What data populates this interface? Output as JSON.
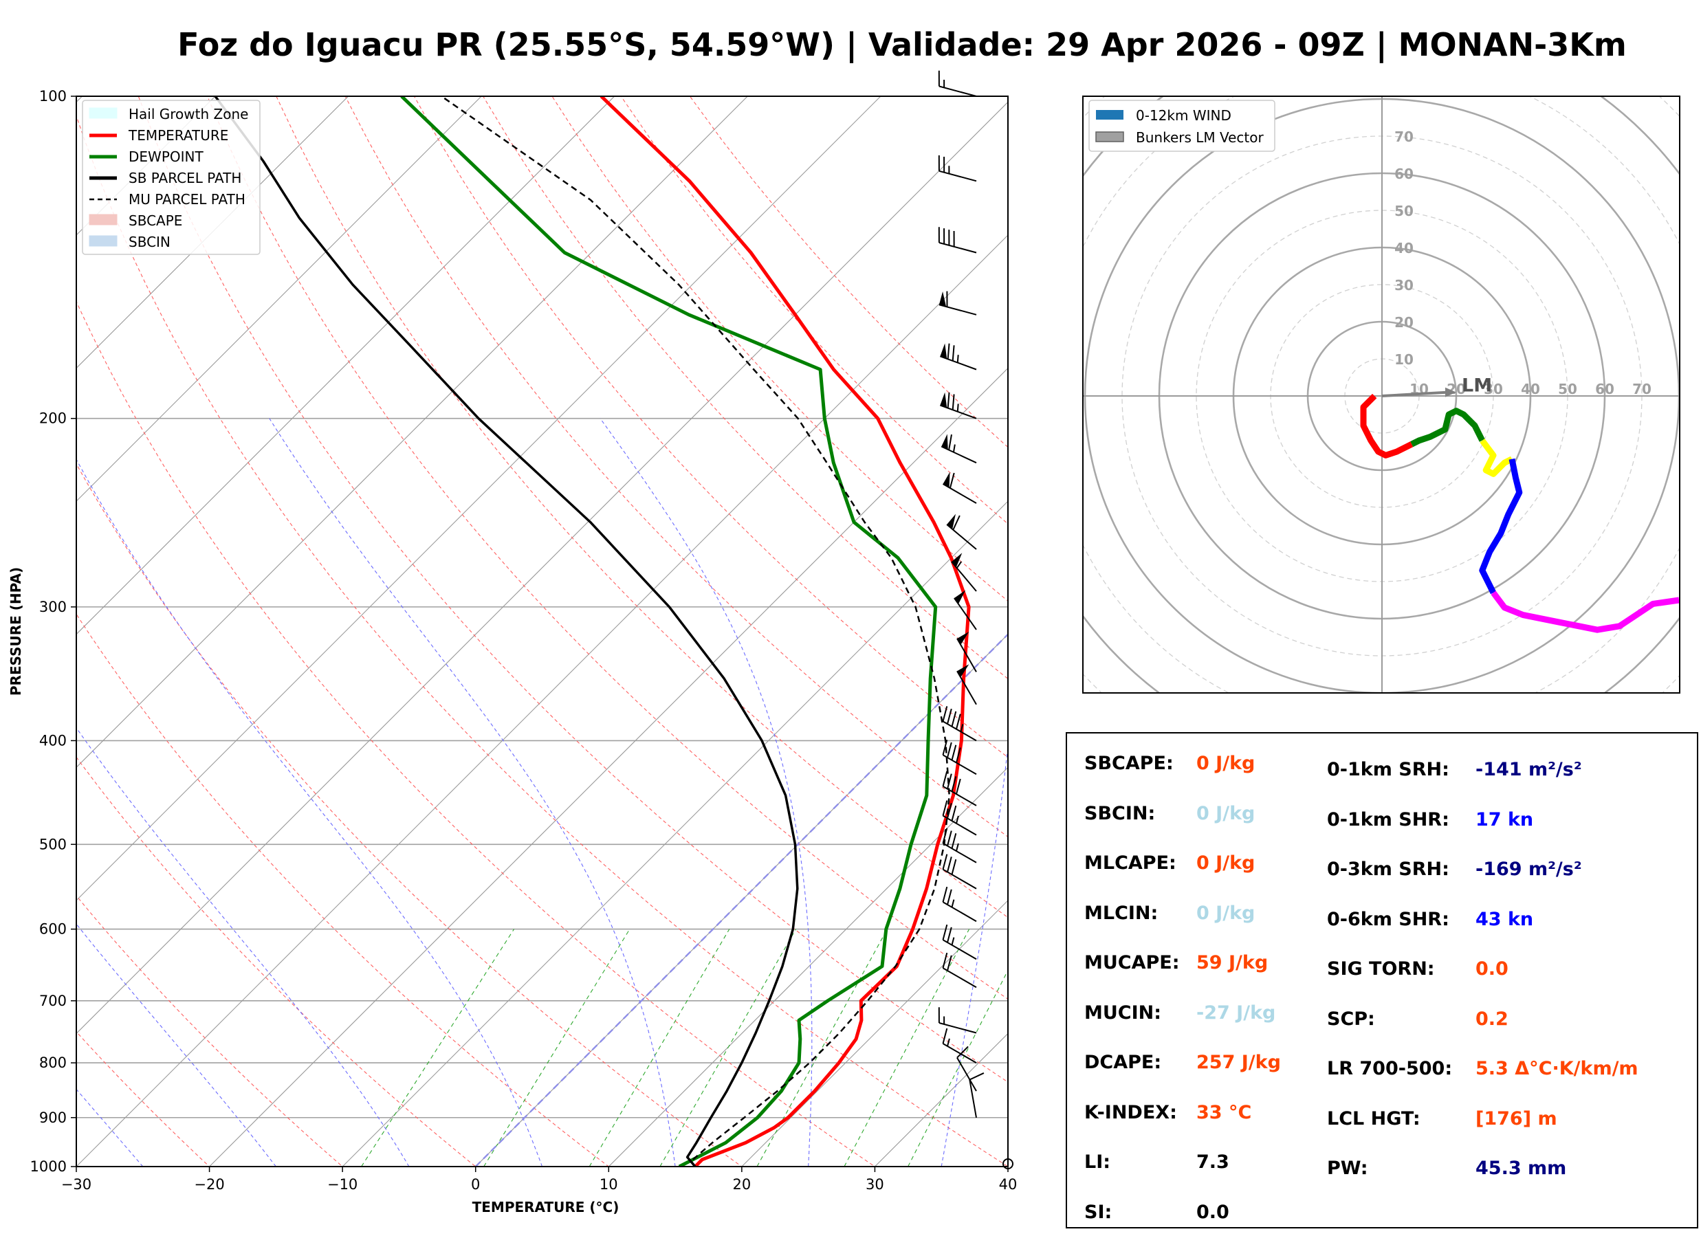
{
  "title": "Foz do Iguacu PR (25.55°S, 54.59°W) | Validade: 29 Apr 2026 - 09Z | MONAN-3Km",
  "colors": {
    "temperature": "#ff0000",
    "dewpoint": "#008000",
    "sb_parcel": "#000000",
    "mu_parcel": "#000000",
    "hodo_segments": [
      "#ff0000",
      "#008000",
      "#ffff00",
      "#0000ff",
      "#ff00ff"
    ],
    "param_orange": "#ff4500",
    "param_lightblue": "#add8e6",
    "param_navy": "#000080",
    "param_blue": "#0000ff",
    "param_black": "#000000"
  },
  "chart_data": [
    {
      "type": "line",
      "subtype": "skew-T log-p",
      "xlabel": "TEMPERATURE (°C)",
      "ylabel": "PRESSURE (HPA)",
      "xlim": [
        -30,
        40
      ],
      "ylim": [
        1000,
        100
      ],
      "x_ticks": [
        "−30",
        "−20",
        "−10",
        "0",
        "10",
        "20",
        "30",
        "40"
      ],
      "y_ticks": [
        "100",
        "200",
        "300",
        "400",
        "500",
        "600",
        "700",
        "800",
        "900",
        "1000"
      ],
      "legend": [
        {
          "label": "Hail Growth Zone",
          "style": "fill",
          "color": "#e0ffff"
        },
        {
          "label": "TEMPERATURE",
          "style": "line",
          "color": "#ff0000"
        },
        {
          "label": "DEWPOINT",
          "style": "line",
          "color": "#008000"
        },
        {
          "label": "SB PARCEL PATH",
          "style": "line",
          "color": "#000000"
        },
        {
          "label": "MU PARCEL PATH",
          "style": "dash",
          "color": "#000000"
        },
        {
          "label": "SBCAPE",
          "style": "fill",
          "color": "#f4c7c3"
        },
        {
          "label": "SBCIN",
          "style": "fill",
          "color": "#c6dbef"
        }
      ],
      "series": [
        {
          "name": "TEMPERATURE",
          "p": [
            1000,
            985,
            950,
            920,
            900,
            850,
            800,
            760,
            730,
            700,
            650,
            600,
            550,
            500,
            450,
            400,
            350,
            300,
            270,
            250,
            220,
            200,
            180,
            160,
            140,
            120,
            100
          ],
          "t": [
            16.5,
            16.5,
            18.5,
            19.5,
            19.8,
            19.8,
            19.5,
            19.0,
            18.0,
            16.5,
            16.6,
            15.0,
            13.0,
            10.5,
            8.0,
            4.5,
            0.0,
            -5.0,
            -10.0,
            -14.0,
            -21.0,
            -26.0,
            -33.0,
            -40.0,
            -48.0,
            -58.0,
            -71.0
          ]
        },
        {
          "name": "DEWPOINT",
          "p": [
            1000,
            985,
            950,
            900,
            850,
            800,
            760,
            730,
            700,
            650,
            600,
            550,
            500,
            450,
            400,
            350,
            300,
            270,
            250,
            220,
            200,
            180,
            160,
            140,
            120,
            100
          ],
          "t": [
            15.3,
            15.8,
            17.0,
            17.5,
            17.3,
            16.5,
            14.8,
            13.3,
            14.0,
            15.5,
            13.0,
            11.0,
            8.5,
            6.0,
            2.0,
            -2.5,
            -7.5,
            -14.0,
            -20.0,
            -26.0,
            -30.0,
            -34.0,
            -48.0,
            -62.0,
            -73.0,
            -86.0
          ]
        },
        {
          "name": "SB PARCEL PATH",
          "style": "solid",
          "p": [
            1000,
            980,
            950,
            900,
            850,
            800,
            750,
            700,
            650,
            600,
            550,
            500,
            450,
            400,
            350,
            300,
            250,
            200,
            170,
            150,
            130,
            115,
            100
          ],
          "t": [
            16.5,
            15.2,
            14.8,
            14.0,
            13.2,
            12.2,
            11.0,
            9.6,
            8.0,
            6.0,
            3.3,
            -0.2,
            -4.6,
            -10.5,
            -18.0,
            -27.5,
            -39.8,
            -56.0,
            -67.0,
            -75.5,
            -84.5,
            -91.5,
            -100.0
          ]
        },
        {
          "name": "MU PARCEL PATH",
          "style": "dash",
          "p": [
            985,
            950,
            900,
            850,
            800,
            750,
            700,
            650,
            600,
            550,
            500,
            450,
            400,
            350,
            300,
            270,
            250,
            220,
            200,
            180,
            150,
            125,
            100
          ],
          "t": [
            15.8,
            16.0,
            16.5,
            17.0,
            17.3,
            17.3,
            17.0,
            16.5,
            15.5,
            13.6,
            11.0,
            7.7,
            3.3,
            -2.2,
            -9.0,
            -14.5,
            -19.2,
            -26.5,
            -32.0,
            -39.0,
            -51.0,
            -64.0,
            -83.0
          ]
        }
      ],
      "wind_barbs_kn": [
        {
          "p": 100,
          "dir": 285,
          "spd": 15
        },
        {
          "p": 120,
          "dir": 285,
          "spd": 25
        },
        {
          "p": 140,
          "dir": 285,
          "spd": 40
        },
        {
          "p": 160,
          "dir": 285,
          "spd": 60
        },
        {
          "p": 180,
          "dir": 290,
          "spd": 75
        },
        {
          "p": 200,
          "dir": 290,
          "spd": 75
        },
        {
          "p": 220,
          "dir": 295,
          "spd": 65
        },
        {
          "p": 240,
          "dir": 300,
          "spd": 60
        },
        {
          "p": 265,
          "dir": 310,
          "spd": 60
        },
        {
          "p": 290,
          "dir": 320,
          "spd": 55
        },
        {
          "p": 315,
          "dir": 325,
          "spd": 50
        },
        {
          "p": 345,
          "dir": 330,
          "spd": 50
        },
        {
          "p": 370,
          "dir": 330,
          "spd": 50
        },
        {
          "p": 400,
          "dir": 300,
          "spd": 45
        },
        {
          "p": 430,
          "dir": 300,
          "spd": 40
        },
        {
          "p": 460,
          "dir": 300,
          "spd": 40
        },
        {
          "p": 490,
          "dir": 300,
          "spd": 35
        },
        {
          "p": 520,
          "dir": 300,
          "spd": 35
        },
        {
          "p": 550,
          "dir": 300,
          "spd": 30
        },
        {
          "p": 590,
          "dir": 300,
          "spd": 25
        },
        {
          "p": 640,
          "dir": 300,
          "spd": 25
        },
        {
          "p": 680,
          "dir": 300,
          "spd": 20
        },
        {
          "p": 750,
          "dir": 285,
          "spd": 15
        },
        {
          "p": 800,
          "dir": 300,
          "spd": 15
        },
        {
          "p": 850,
          "dir": 330,
          "spd": 10
        },
        {
          "p": 900,
          "dir": 350,
          "spd": 10
        }
      ]
    },
    {
      "type": "line",
      "subtype": "hodograph",
      "legend": [
        "0-12km WIND",
        "Bunkers LM Vector"
      ],
      "ring_labels": [
        "10",
        "20",
        "30",
        "40",
        "50",
        "60",
        "70"
      ],
      "lm_label": "LM",
      "lm_vector": {
        "u": 20,
        "v": 1
      },
      "segments": [
        {
          "color": "#ff0000",
          "u": [
            -2,
            -5,
            -5,
            -3,
            -1,
            1,
            4,
            8
          ],
          "v": [
            0,
            -3,
            -8,
            -12,
            -15,
            -16,
            -15,
            -13
          ]
        },
        {
          "color": "#008000",
          "u": [
            8,
            10,
            13,
            15,
            17,
            18,
            20,
            22,
            25,
            27
          ],
          "v": [
            -13,
            -12,
            -11,
            -10,
            -9,
            -5,
            -4,
            -5,
            -8,
            -12
          ]
        },
        {
          "color": "#ffff00",
          "u": [
            27,
            30,
            28,
            30,
            33,
            35
          ],
          "v": [
            -12,
            -16,
            -20,
            -21,
            -18,
            -17
          ]
        },
        {
          "color": "#0000ff",
          "u": [
            35,
            36,
            37,
            34,
            32,
            29,
            27,
            30
          ],
          "v": [
            -17,
            -22,
            -26,
            -32,
            -37,
            -42,
            -47,
            -53
          ]
        },
        {
          "color": "#ff00ff",
          "u": [
            30,
            33,
            38,
            48,
            58,
            64,
            73,
            80
          ],
          "v": [
            -53,
            -57,
            -59,
            -61,
            -63,
            -62,
            -56,
            -55
          ]
        }
      ]
    }
  ],
  "params": [
    {
      "label": "SBCAPE:",
      "value": "0 J/kg",
      "color": "#ff4500"
    },
    {
      "label": "SBCIN:",
      "value": "0 J/kg",
      "color": "#add8e6"
    },
    {
      "label": "MLCAPE:",
      "value": "0 J/kg",
      "color": "#ff4500"
    },
    {
      "label": "MLCIN:",
      "value": "0 J/kg",
      "color": "#add8e6"
    },
    {
      "label": "MUCAPE:",
      "value": "59 J/kg",
      "color": "#ff4500"
    },
    {
      "label": "MUCIN:",
      "value": "-27 J/kg",
      "color": "#add8e6"
    },
    {
      "label": "DCAPE:",
      "value": "257 J/kg",
      "color": "#ff4500"
    },
    {
      "label": "K-INDEX:",
      "value": "33 °C",
      "color": "#ff4500"
    },
    {
      "label": "LI:",
      "value": "7.3",
      "color": "#000000"
    },
    {
      "label": "SI:",
      "value": "0.0",
      "color": "#000000"
    },
    {
      "label": "0-1km SRH:",
      "value": "-141 m²/s²",
      "color": "#000080"
    },
    {
      "label": "0-1km SHR:",
      "value": "17 kn",
      "color": "#0000ff"
    },
    {
      "label": "0-3km SRH:",
      "value": "-169 m²/s²",
      "color": "#000080"
    },
    {
      "label": "0-6km SHR:",
      "value": "43 kn",
      "color": "#0000ff"
    },
    {
      "label": "SIG TORN:",
      "value": "0.0",
      "color": "#ff4500"
    },
    {
      "label": "SCP:",
      "value": "0.2",
      "color": "#ff4500"
    },
    {
      "label": "LR 700-500:",
      "value": "5.3 Δ°C·K/km/m",
      "color": "#ff4500"
    },
    {
      "label": "LCL HGT:",
      "value": "[176] m",
      "color": "#ff4500"
    },
    {
      "label": "PW:",
      "value": "45.3 mm",
      "color": "#000080"
    }
  ]
}
